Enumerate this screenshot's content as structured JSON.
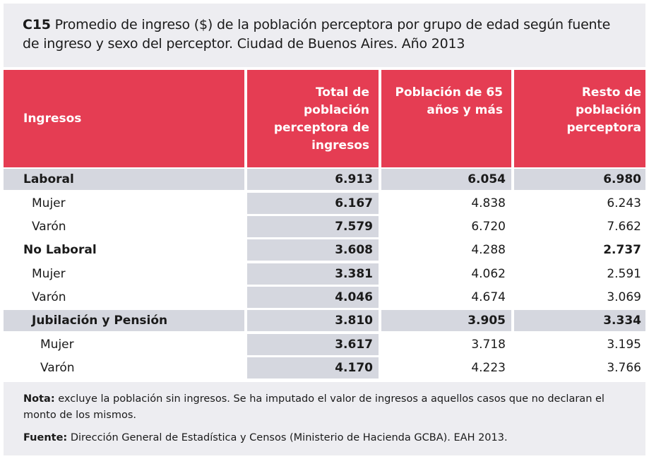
{
  "title": {
    "code": "C15",
    "text": " Promedio de ingreso ($) de la población perceptora por grupo de edad según fuente de ingreso y sexo del perceptor. Ciudad de Buenos Aires. Año 2013"
  },
  "table": {
    "headers": [
      "Ingresos",
      "Total de población perceptora de ingresos",
      "Población de 65 años y más",
      "Resto de población perceptora"
    ],
    "rows": [
      {
        "label": "Laboral",
        "values": [
          "6.913",
          "6.054",
          "6.980"
        ]
      },
      {
        "label": "Mujer",
        "values": [
          "6.167",
          "4.838",
          "6.243"
        ]
      },
      {
        "label": "Varón",
        "values": [
          "7.579",
          "6.720",
          "7.662"
        ]
      },
      {
        "label": "No Laboral",
        "values": [
          "3.608",
          "4.288",
          "2.737"
        ]
      },
      {
        "label": "Mujer",
        "values": [
          "3.381",
          "4.062",
          "2.591"
        ]
      },
      {
        "label": "Varón",
        "values": [
          "4.046",
          "4.674",
          "3.069"
        ]
      },
      {
        "label": "Jubilación y Pensión",
        "values": [
          "3.810",
          "3.905",
          "3.334"
        ]
      },
      {
        "label": "Mujer",
        "values": [
          "3.617",
          "3.718",
          "3.195"
        ]
      },
      {
        "label": "Varón",
        "values": [
          "4.170",
          "4.223",
          "3.766"
        ]
      }
    ]
  },
  "note": {
    "label": "Nota:",
    "text": " excluye la población sin ingresos. Se ha imputado el valor de ingresos a aquellos casos que no declaran el monto de los mismos."
  },
  "source": {
    "label": "Fuente:",
    "text": " Dirección General de Estadística y Censos (Ministerio de Hacienda GCBA). EAH 2013."
  }
}
